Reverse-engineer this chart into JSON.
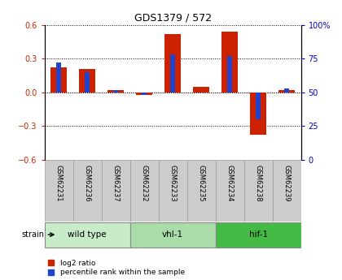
{
  "title": "GDS1379 / 572",
  "samples": [
    "GSM62231",
    "GSM62236",
    "GSM62237",
    "GSM62232",
    "GSM62233",
    "GSM62235",
    "GSM62234",
    "GSM62238",
    "GSM62239"
  ],
  "log2_ratio": [
    0.22,
    0.21,
    0.02,
    -0.02,
    0.52,
    0.05,
    0.54,
    -0.38,
    0.02
  ],
  "percentile_rank": [
    72,
    65,
    52,
    48,
    78,
    50,
    77,
    30,
    53
  ],
  "groups": [
    {
      "label": "wild type",
      "start": 0,
      "end": 3,
      "color": "#c8ecc8"
    },
    {
      "label": "vhl-1",
      "start": 3,
      "end": 6,
      "color": "#a8dca8"
    },
    {
      "label": "hif-1",
      "start": 6,
      "end": 9,
      "color": "#44bb44"
    }
  ],
  "ylim_left": [
    -0.6,
    0.6
  ],
  "ylim_right": [
    0,
    100
  ],
  "yticks_left": [
    -0.6,
    -0.3,
    0.0,
    0.3,
    0.6
  ],
  "yticks_right": [
    0,
    25,
    50,
    75,
    100
  ],
  "bar_color_red": "#cc2200",
  "bar_color_blue": "#2244cc",
  "tick_label_color_left": "#cc2200",
  "tick_label_color_right": "#0000cc",
  "red_bar_width": 0.55,
  "blue_bar_width": 0.18,
  "legend_red": "log2 ratio",
  "legend_blue": "percentile rank within the sample",
  "sample_box_color": "#cccccc",
  "sample_box_edge": "#999999"
}
